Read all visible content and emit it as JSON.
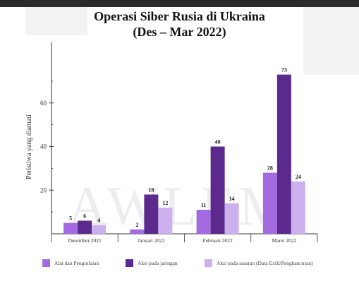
{
  "chart_data": {
    "type": "bar",
    "title": "Operasi Siber Rusia di Ukraina",
    "subtitle": "(Des – Mar 2022)",
    "ylabel": "Peristiwa yang diamati",
    "xlabel": "",
    "ylim": [
      0,
      80
    ],
    "yticks": [
      20,
      40,
      60
    ],
    "categories": [
      "Desember 2021",
      "Januari 2022",
      "Februari 2022",
      "Maret 2022"
    ],
    "series": [
      {
        "name": "Alat dan Penginfaian",
        "color": "#a46be0",
        "values": [
          5,
          2,
          11,
          28
        ]
      },
      {
        "name": "Aksi pada jaringan",
        "color": "#5b2a8c",
        "values": [
          6,
          18,
          40,
          73
        ]
      },
      {
        "name": "Aksi pada sasaran (Data Exfil/Penghancuran)",
        "color": "#cdb1ef",
        "values": [
          4,
          12,
          14,
          24
        ]
      }
    ],
    "legend_position": "bottom",
    "grid": false,
    "watermark": "AWLEM"
  }
}
